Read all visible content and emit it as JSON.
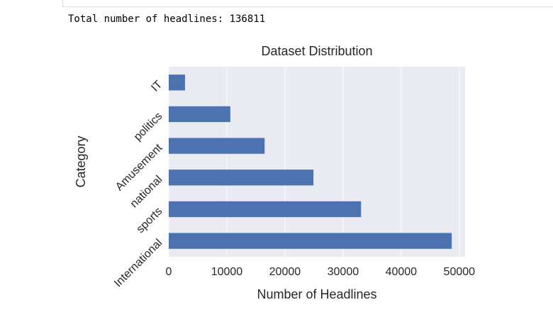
{
  "output": {
    "text": "Total number of headlines: 136811"
  },
  "chart_data": {
    "type": "bar",
    "orientation": "horizontal",
    "title": "Dataset Distribution",
    "xlabel": "Number of Headlines",
    "ylabel": "Category",
    "categories": [
      "International",
      "sports",
      "national",
      "Amusement",
      "politics",
      "IT"
    ],
    "values": [
      48700,
      33100,
      24900,
      16500,
      10600,
      2800
    ],
    "xlim": [
      0,
      51000
    ],
    "xticks": [
      0,
      10000,
      20000,
      30000,
      40000,
      50000
    ],
    "grid": true,
    "bar_color": "#4c72b0",
    "background_color": "#eaeaf2",
    "grid_color": "#ffffff"
  }
}
